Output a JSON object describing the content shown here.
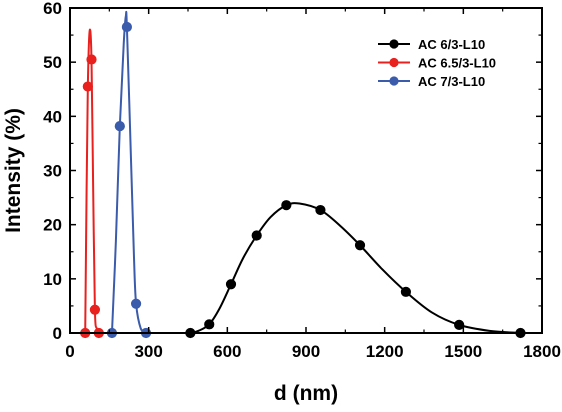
{
  "chart_data": {
    "type": "line",
    "xlabel": "d (nm)",
    "ylabel": "Intensity (%)",
    "xlim": [
      0,
      1800
    ],
    "ylim": [
      0,
      60
    ],
    "xticks": [
      "0",
      "300",
      "600",
      "900",
      "1200",
      "1500",
      "1800"
    ],
    "yticks": [
      "0",
      "10",
      "20",
      "30",
      "40",
      "50",
      "60"
    ],
    "grid": false,
    "legend_position": "top-right",
    "series": [
      {
        "name": "AC 6/3-L10",
        "color": "#000000",
        "markers": [
          [
            459,
            0
          ],
          [
            531,
            1.6
          ],
          [
            614,
            9.0
          ],
          [
            712,
            18.0
          ],
          [
            825,
            23.6
          ],
          [
            955,
            22.7
          ],
          [
            1106,
            16.2
          ],
          [
            1281,
            7.6
          ],
          [
            1484,
            1.5
          ],
          [
            1718,
            0
          ]
        ],
        "curve": [
          [
            459,
            0
          ],
          [
            490,
            0.4
          ],
          [
            531,
            1.6
          ],
          [
            570,
            4.5
          ],
          [
            614,
            9.0
          ],
          [
            660,
            13.8
          ],
          [
            712,
            18.0
          ],
          [
            765,
            21.4
          ],
          [
            825,
            23.6
          ],
          [
            875,
            23.9
          ],
          [
            955,
            22.7
          ],
          [
            1030,
            19.8
          ],
          [
            1106,
            16.2
          ],
          [
            1190,
            11.8
          ],
          [
            1281,
            7.6
          ],
          [
            1380,
            3.8
          ],
          [
            1484,
            1.5
          ],
          [
            1600,
            0.4
          ],
          [
            1718,
            0
          ]
        ]
      },
      {
        "name": "AC 6.5/3-L10",
        "color": "#e8201e",
        "markers": [
          [
            58,
            0
          ],
          [
            68,
            45.5
          ],
          [
            82,
            50.5
          ],
          [
            95,
            4.3
          ],
          [
            110,
            0
          ]
        ],
        "curve": [
          [
            58,
            0
          ],
          [
            63,
            25
          ],
          [
            68,
            45.5
          ],
          [
            75,
            55.8
          ],
          [
            82,
            50.5
          ],
          [
            88,
            28
          ],
          [
            95,
            4.3
          ],
          [
            102,
            0.8
          ],
          [
            110,
            0
          ]
        ]
      },
      {
        "name": "AC 7/3-L10",
        "color": "#3b5bab",
        "markers": [
          [
            160,
            0
          ],
          [
            190,
            38.2
          ],
          [
            217,
            56.5
          ],
          [
            252,
            5.4
          ],
          [
            290,
            0
          ]
        ],
        "curve": [
          [
            160,
            0
          ],
          [
            175,
            17
          ],
          [
            190,
            38.2
          ],
          [
            205,
            53.5
          ],
          [
            213,
            58.5
          ],
          [
            217,
            56.5
          ],
          [
            232,
            33
          ],
          [
            244,
            14
          ],
          [
            252,
            5.4
          ],
          [
            270,
            0.8
          ],
          [
            290,
            0
          ]
        ]
      }
    ]
  }
}
